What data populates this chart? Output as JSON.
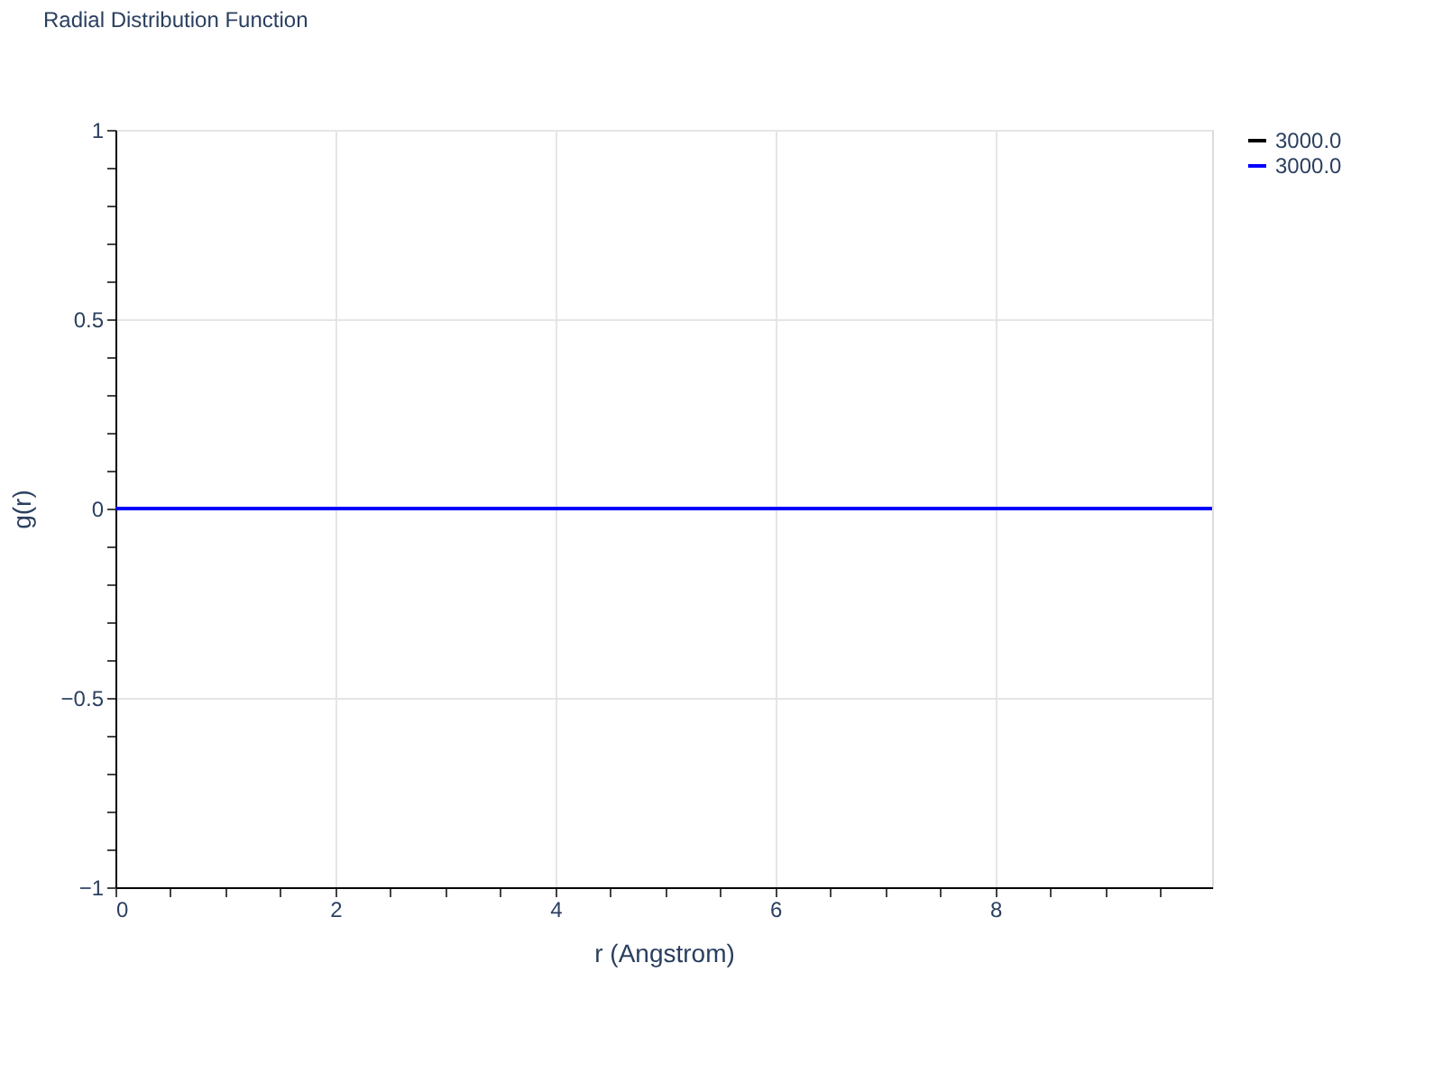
{
  "chart_data": {
    "type": "line",
    "title": "Radial Distribution Function",
    "xlabel": "r (Angstrom)",
    "ylabel": "g(r)",
    "x": [
      0,
      9.97
    ],
    "series": [
      {
        "name": "3000.0",
        "color": "#000000",
        "values": [
          null,
          null
        ]
      },
      {
        "name": "3000.0",
        "color": "#0000ff",
        "values": [
          0,
          0
        ]
      }
    ],
    "xlim": [
      0,
      9.97
    ],
    "xticks": [
      0,
      {
        "value": 0.5,
        "label": null
      },
      {
        "value": 1,
        "label": null
      },
      {
        "value": 1.5,
        "label": null
      },
      2,
      {
        "value": 2.5,
        "label": null
      },
      {
        "value": 3,
        "label": null
      },
      {
        "value": 3.5,
        "label": null
      },
      4,
      {
        "value": 4.5,
        "label": null
      },
      {
        "value": 5,
        "label": null
      },
      {
        "value": 5.5,
        "label": null
      },
      6,
      {
        "value": 6.5,
        "label": null
      },
      {
        "value": 7,
        "label": null
      },
      {
        "value": 7.5,
        "label": null
      },
      8,
      {
        "value": 8.5,
        "label": null
      },
      {
        "value": 9,
        "label": null
      },
      {
        "value": 9.5,
        "label": null
      }
    ],
    "ylim": [
      -1,
      1
    ],
    "yticks": [
      {
        "value": -1,
        "label": "−1"
      },
      {
        "value": -0.9,
        "label": null
      },
      {
        "value": -0.8,
        "label": null
      },
      {
        "value": -0.7,
        "label": null
      },
      {
        "value": -0.6,
        "label": null
      },
      {
        "value": -0.5,
        "label": "−0.5"
      },
      {
        "value": -0.4,
        "label": null
      },
      {
        "value": -0.3,
        "label": null
      },
      {
        "value": -0.2,
        "label": null
      },
      {
        "value": -0.1,
        "label": null
      },
      0,
      {
        "value": 0.1,
        "label": null
      },
      {
        "value": 0.2,
        "label": null
      },
      {
        "value": 0.3,
        "label": null
      },
      {
        "value": 0.4,
        "label": null
      },
      0.5,
      {
        "value": 0.6,
        "label": null
      },
      {
        "value": 0.7,
        "label": null
      },
      {
        "value": 0.8,
        "label": null
      },
      {
        "value": 0.9,
        "label": null
      },
      1
    ],
    "grid": true,
    "legend": "top right",
    "line_style": "solid",
    "marker": "none"
  }
}
